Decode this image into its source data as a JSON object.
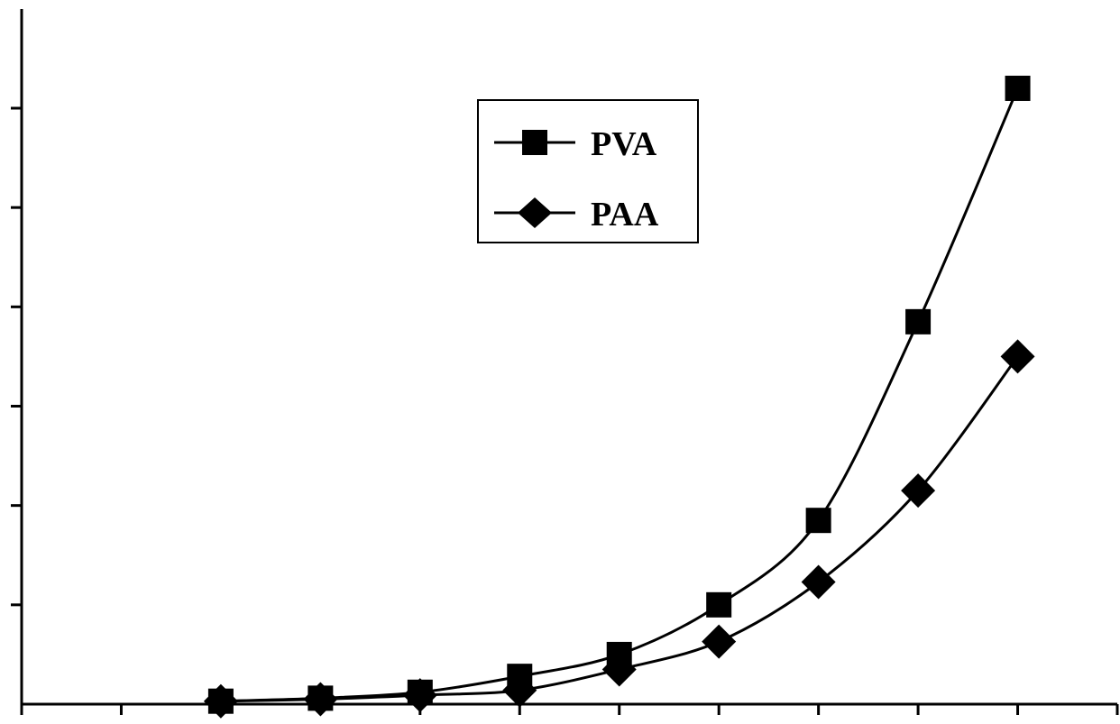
{
  "chart_data": {
    "type": "line",
    "title": "",
    "xlabel": "",
    "ylabel": "",
    "x": [
      2,
      3,
      4,
      5,
      6,
      7,
      8,
      9,
      10
    ],
    "xlim": [
      0,
      11
    ],
    "ylim": [
      0,
      7
    ],
    "x_tick_count": 12,
    "y_tick_count": 8,
    "tick_labels_shown": false,
    "grid": false,
    "legend": "top-center",
    "series": [
      {
        "name": "PVA",
        "marker": "square",
        "color": "#000000",
        "values": [
          0.03,
          0.06,
          0.12,
          0.28,
          0.5,
          1.0,
          1.85,
          3.85,
          6.2
        ]
      },
      {
        "name": "PAA",
        "marker": "diamond",
        "color": "#000000",
        "values": [
          0.03,
          0.05,
          0.09,
          0.14,
          0.35,
          0.63,
          1.23,
          2.15,
          3.5
        ]
      }
    ]
  }
}
